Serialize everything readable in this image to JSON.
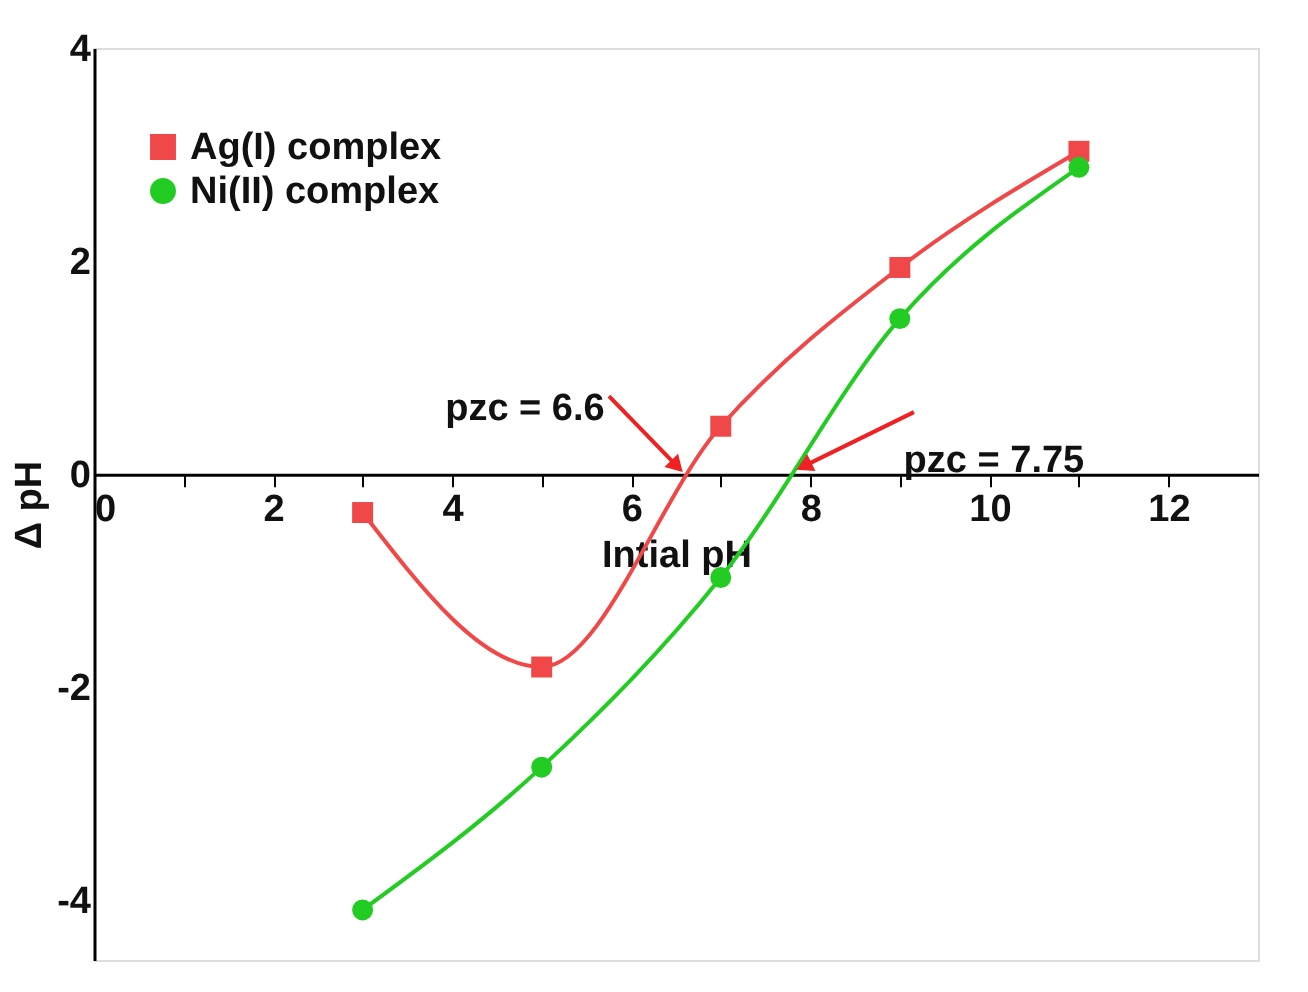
{
  "chart_data": {
    "type": "line",
    "xlabel": "Intial pH",
    "ylabel": "Δ pH",
    "x": [
      3,
      5,
      7,
      9,
      11
    ],
    "series": [
      {
        "name": "Ag(I) complex",
        "color": "#f04848",
        "marker": "square",
        "values": [
          -0.36,
          -1.81,
          0.45,
          1.94,
          3.03
        ]
      },
      {
        "name": "Ni(II) complex",
        "color": "#22cc22",
        "marker": "circle",
        "values": [
          -4.09,
          -2.75,
          -0.97,
          1.46,
          2.88
        ]
      }
    ],
    "xlim": [
      0,
      13
    ],
    "ylim": [
      -4.56,
      4
    ],
    "xticks": [
      0,
      {
        "value": 1,
        "label": null
      },
      2,
      {
        "value": 3,
        "label": null
      },
      4,
      {
        "value": 5,
        "label": null
      },
      6,
      {
        "value": 7,
        "label": null
      },
      8,
      {
        "value": 9,
        "label": null
      },
      10,
      {
        "value": 11,
        "label": null
      },
      12
    ],
    "yticks": [
      -4,
      -2,
      0,
      2,
      4
    ],
    "annotations": [
      {
        "text": "pzc  = 6.6",
        "x": 6.6,
        "y": 0
      },
      {
        "text": "pzc  = 7.75",
        "x": 7.75,
        "y": 0
      }
    ],
    "legend": "top left",
    "grid": false,
    "line_style": "solid"
  }
}
